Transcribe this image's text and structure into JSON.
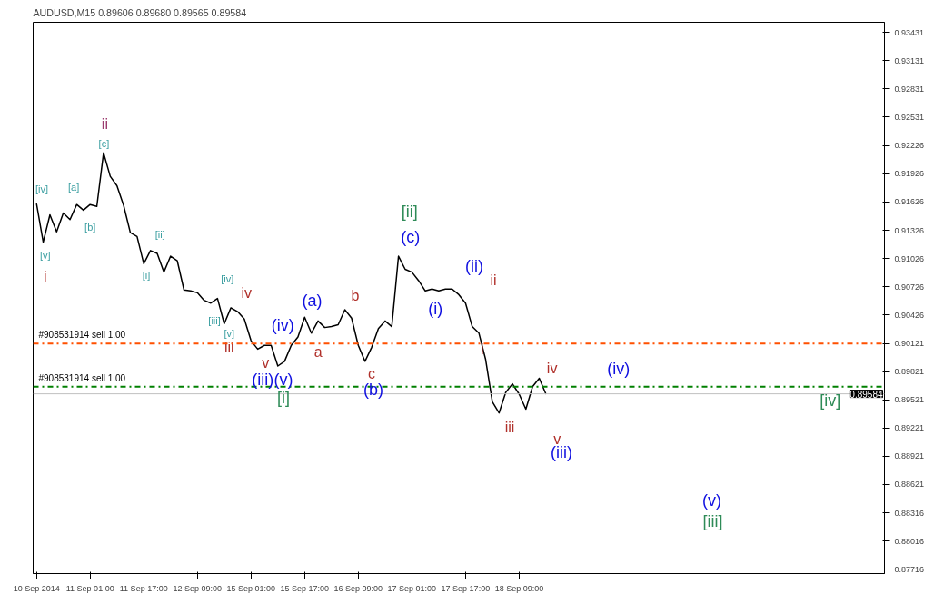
{
  "chart_data": {
    "type": "line",
    "title": "AUDUSD,M15  0.89606 0.89680 0.89565 0.89584",
    "categories": [
      "10 Sep 2014",
      null,
      null,
      null,
      null,
      null,
      null,
      null,
      "11 Sep 01:00",
      null,
      null,
      null,
      null,
      null,
      null,
      null,
      "11 Sep 17:00",
      null,
      null,
      null,
      null,
      null,
      null,
      null,
      "12 Sep 09:00",
      null,
      null,
      null,
      null,
      null,
      null,
      null,
      "15 Sep 01:00",
      null,
      null,
      null,
      null,
      null,
      null,
      null,
      "15 Sep 17:00",
      null,
      null,
      null,
      null,
      null,
      null,
      null,
      "16 Sep 09:00",
      null,
      null,
      null,
      null,
      null,
      null,
      null,
      "17 Sep 01:00",
      null,
      null,
      null,
      null,
      null,
      null,
      null,
      "17 Sep 17:00",
      null,
      null,
      null,
      null,
      null,
      null,
      null,
      "18 Sep 09:00",
      null,
      null,
      null,
      null,
      null,
      null,
      null,
      null,
      null,
      null,
      null,
      null,
      null,
      null,
      null,
      null,
      null,
      null,
      null,
      null,
      null,
      null,
      null,
      null,
      null,
      null,
      null,
      null,
      null,
      null,
      null,
      null,
      null,
      null,
      null,
      null,
      null,
      null,
      null,
      null,
      null,
      null,
      null,
      null,
      null,
      null,
      null,
      null,
      null,
      null,
      null,
      null,
      null,
      null
    ],
    "series": [
      {
        "color": "#000000",
        "values": [
          0.9161,
          0.912,
          0.9149,
          0.9131,
          0.9151,
          0.9144,
          0.916,
          0.9154,
          0.916,
          0.9158,
          0.9215,
          0.919,
          0.918,
          0.9159,
          0.913,
          0.9126,
          0.9097,
          0.9111,
          0.9108,
          0.9088,
          0.9105,
          0.91,
          0.9069,
          0.9068,
          0.9066,
          0.9058,
          0.9055,
          0.906,
          0.9033,
          0.905,
          0.9046,
          0.9038,
          0.9015,
          0.9006,
          0.901,
          0.901,
          0.8988,
          0.8993,
          0.901,
          0.9019,
          0.904,
          0.9023,
          0.9036,
          0.9029,
          0.903,
          0.9032,
          0.9048,
          0.9039,
          0.901,
          0.8993,
          0.9008,
          0.9028,
          0.9036,
          0.903,
          0.9105,
          0.9091,
          0.9088,
          0.9079,
          0.9068,
          0.907,
          0.9068,
          0.907,
          0.907,
          0.9064,
          0.9055,
          0.903,
          0.9023,
          0.8995,
          0.895,
          0.8938,
          0.896,
          0.8969,
          0.8958,
          0.8942,
          0.8966,
          0.8975,
          0.8958,
          null,
          null,
          null,
          null,
          null,
          null,
          null,
          null,
          null,
          null,
          null,
          null,
          null,
          null,
          null,
          null,
          null,
          null,
          null,
          null,
          null,
          null,
          null,
          null,
          null,
          null,
          null,
          null,
          null,
          null,
          null,
          null,
          null,
          null,
          null,
          null,
          null,
          null,
          null,
          null,
          null,
          null,
          null,
          null,
          null,
          null,
          null,
          null,
          null,
          null
        ]
      }
    ],
    "ylim": [
      0.8767,
      0.93541
    ],
    "yticks": [
      0.93431,
      0.93131,
      0.92831,
      0.92531,
      0.92226,
      0.91926,
      0.91626,
      0.91326,
      0.91026,
      0.90726,
      0.90426,
      0.90121,
      0.89821,
      0.89521,
      0.89221,
      0.88921,
      0.88621,
      0.88316,
      0.88016,
      0.87716
    ],
    "grid": false,
    "line_style": "solid",
    "ref_lines": [
      {
        "axis": "y",
        "value": 0.9012,
        "label": "#908531914 sell 1.00",
        "color": "#ff5000",
        "line_style": "dashdot"
      },
      {
        "axis": "y",
        "value": 0.8966,
        "label": "#908531914 sell 1.00",
        "color": "#008000",
        "line_style": "dashdot"
      },
      {
        "axis": "y",
        "value": 0.89584,
        "label": "0.89584",
        "color": "#c0c0c0",
        "line_style": "solid"
      }
    ],
    "annotations": [
      "[iv]",
      "[a]",
      "[b]",
      "[c]",
      "ii",
      "[v]",
      "i",
      "[ii]",
      "[i]",
      "[iv]",
      "iv",
      "[iii]",
      "[v]",
      "iii",
      "v",
      "(iv)",
      "(a)",
      "a",
      "b",
      "c",
      "(iii)",
      "(v)",
      "[i]",
      "(b)",
      "[ii]",
      "(c)",
      "(i)",
      "(ii)",
      "ii",
      "i",
      "iii",
      "iv",
      "v",
      "(iii)",
      "(iv)",
      "[iv]",
      "(v)",
      "[iii]"
    ]
  }
}
